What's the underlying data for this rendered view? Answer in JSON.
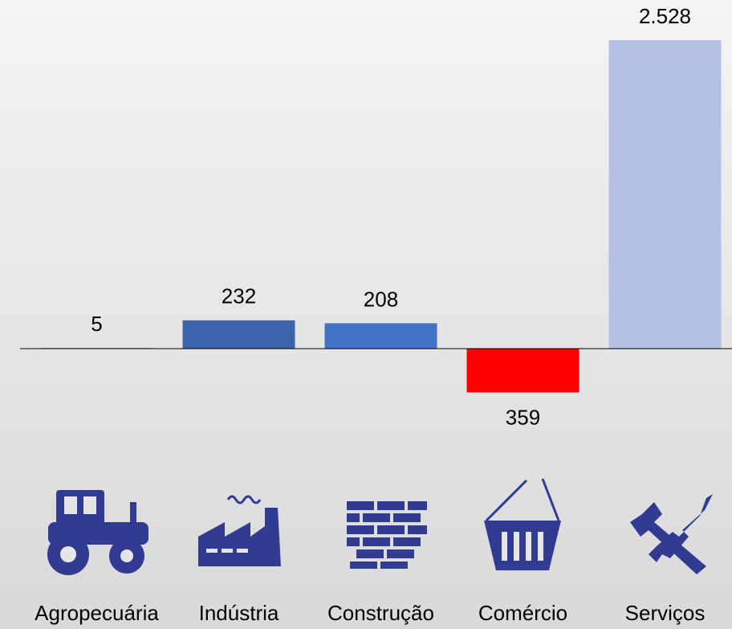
{
  "chart_data": {
    "type": "bar",
    "categories": [
      "Agropecuária",
      "Indústria",
      "Construção",
      "Comércio",
      "Serviços"
    ],
    "values": [
      5,
      232,
      208,
      -359,
      2528
    ],
    "value_labels": [
      "5",
      "232",
      "208",
      "359",
      "2.528"
    ],
    "colors": [
      "#7f7f7f",
      "#3a65ad",
      "#4472c4",
      "#ff0000",
      "#b4c1e3"
    ]
  }
}
